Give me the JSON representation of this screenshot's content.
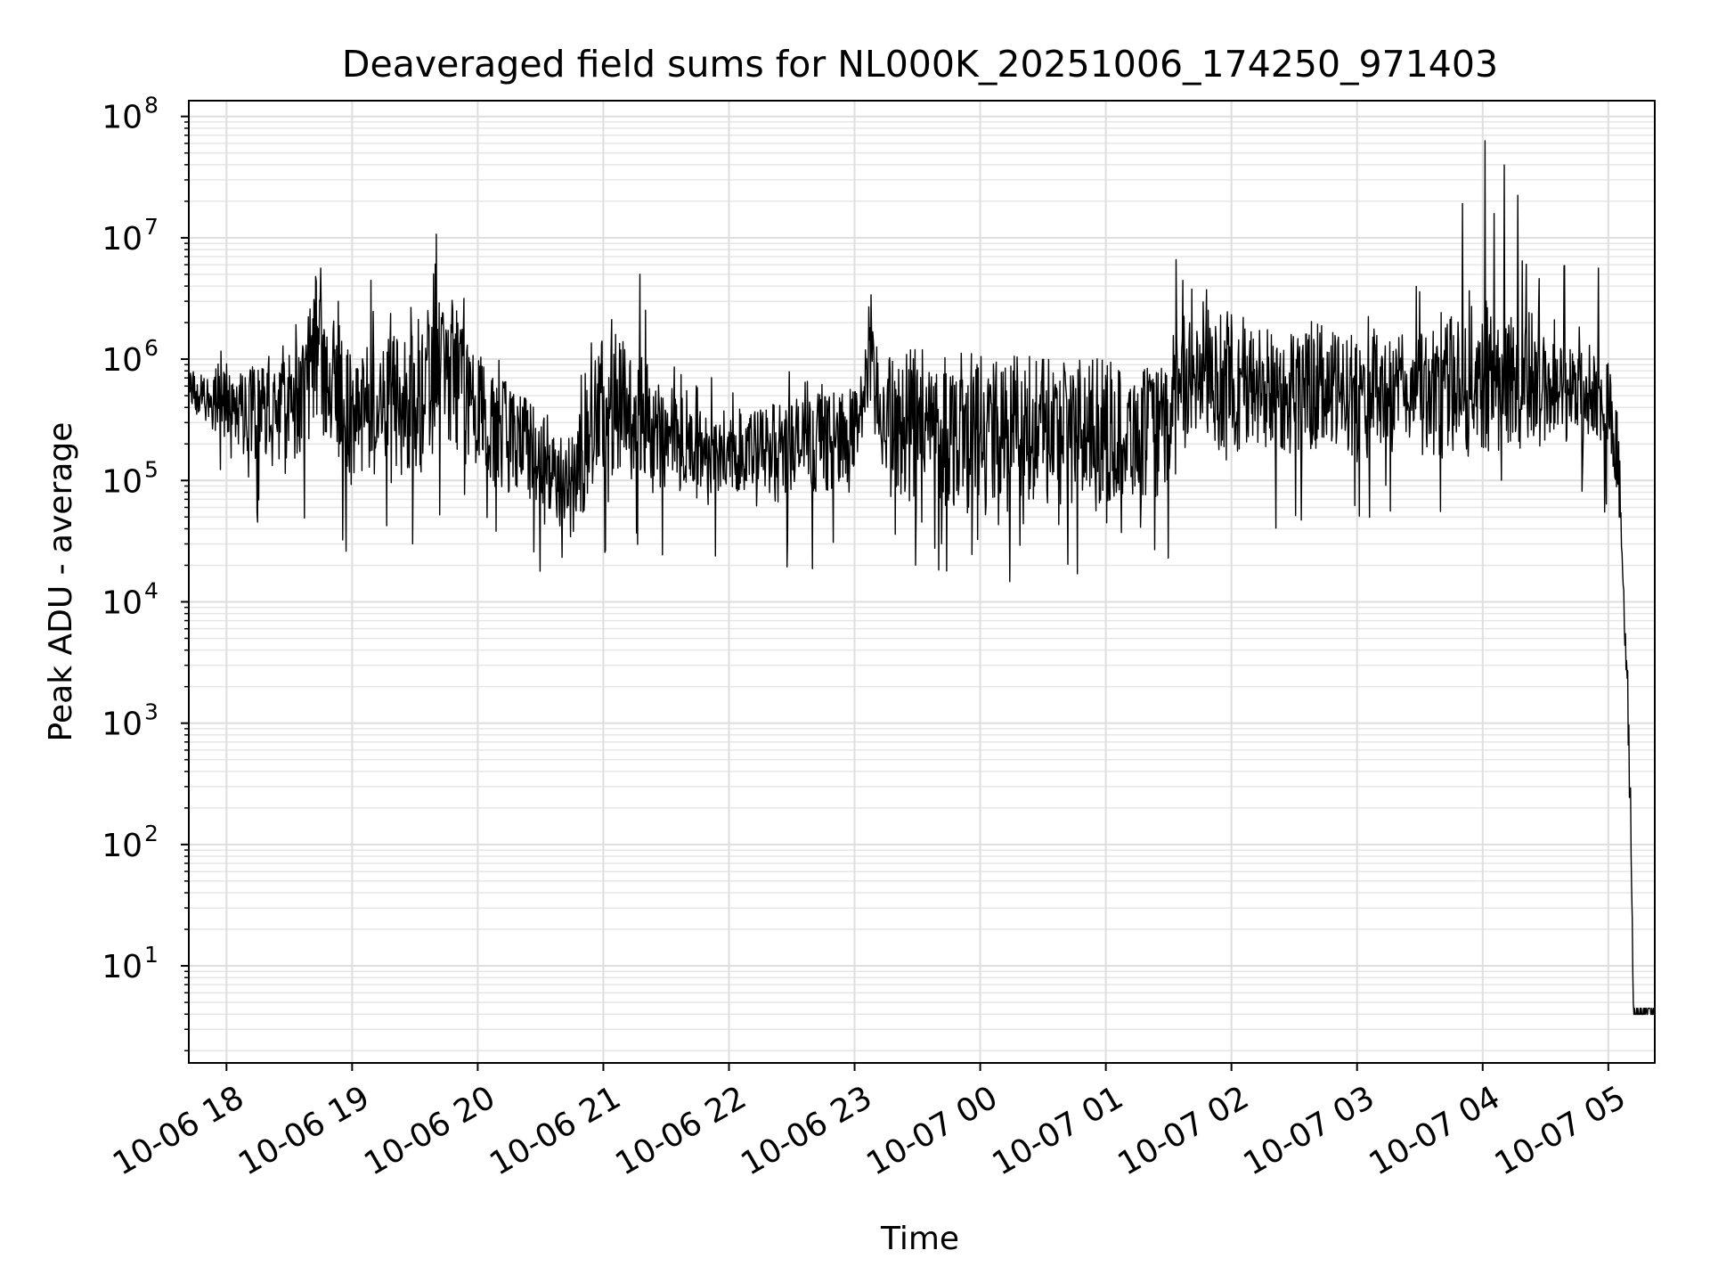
{
  "chart_data": {
    "type": "line",
    "title": "Deaveraged field sums for NL000K_20251006_174250_971403",
    "xlabel": "Time",
    "ylabel": "Peak ADU - average",
    "yscale": "log",
    "ylim_exp": [
      0.2,
      8.13
    ],
    "xlim_hours": [
      -0.3,
      11.37
    ],
    "grid": true,
    "line_color": "#000000",
    "x_ticks": [
      {
        "label": "10-06 18",
        "hour": 0
      },
      {
        "label": "10-06 19",
        "hour": 1
      },
      {
        "label": "10-06 20",
        "hour": 2
      },
      {
        "label": "10-06 21",
        "hour": 3
      },
      {
        "label": "10-06 22",
        "hour": 4
      },
      {
        "label": "10-06 23",
        "hour": 5
      },
      {
        "label": "10-07 00",
        "hour": 6
      },
      {
        "label": "10-07 01",
        "hour": 7
      },
      {
        "label": "10-07 02",
        "hour": 8
      },
      {
        "label": "10-07 03",
        "hour": 9
      },
      {
        "label": "10-07 04",
        "hour": 10
      },
      {
        "label": "10-07 05",
        "hour": 11
      }
    ],
    "y_ticks": [
      {
        "base": "10",
        "exp": "1",
        "value_exp": 1
      },
      {
        "base": "10",
        "exp": "2",
        "value_exp": 2
      },
      {
        "base": "10",
        "exp": "3",
        "value_exp": 3
      },
      {
        "base": "10",
        "exp": "4",
        "value_exp": 4
      },
      {
        "base": "10",
        "exp": "5",
        "value_exp": 5
      },
      {
        "base": "10",
        "exp": "6",
        "value_exp": 6
      },
      {
        "base": "10",
        "exp": "7",
        "value_exp": 7
      },
      {
        "base": "10",
        "exp": "8",
        "value_exp": 8
      }
    ],
    "envelope": [
      {
        "hour": -0.3,
        "lo": 5.6,
        "hi": 5.85,
        "spike": 5.9
      },
      {
        "hour": 0.0,
        "lo": 5.3,
        "hi": 5.9,
        "spike": 6.1
      },
      {
        "hour": 0.5,
        "lo": 5.0,
        "hi": 6.1,
        "spike": 6.4
      },
      {
        "hour": 0.75,
        "lo": 5.3,
        "hi": 6.7,
        "spike": 6.75
      },
      {
        "hour": 1.0,
        "lo": 4.9,
        "hi": 6.0,
        "spike": 6.4
      },
      {
        "hour": 1.5,
        "lo": 5.0,
        "hi": 6.3,
        "spike": 6.5
      },
      {
        "hour": 1.75,
        "lo": 5.3,
        "hi": 6.6,
        "spike": 7.0
      },
      {
        "hour": 2.0,
        "lo": 5.0,
        "hi": 6.0,
        "spike": 6.3
      },
      {
        "hour": 2.5,
        "lo": 4.8,
        "hi": 5.6,
        "spike": 5.8
      },
      {
        "hour": 2.75,
        "lo": 4.5,
        "hi": 5.4,
        "spike": 5.6
      },
      {
        "hour": 3.0,
        "lo": 5.0,
        "hi": 6.2,
        "spike": 6.55
      },
      {
        "hour": 3.3,
        "lo": 5.0,
        "hi": 6.1,
        "spike": 6.7
      },
      {
        "hour": 3.5,
        "lo": 4.9,
        "hi": 5.7,
        "spike": 6.0
      },
      {
        "hour": 4.0,
        "lo": 4.9,
        "hi": 5.5,
        "spike": 5.8
      },
      {
        "hour": 4.5,
        "lo": 4.8,
        "hi": 5.7,
        "spike": 5.9
      },
      {
        "hour": 4.99,
        "lo": 5.0,
        "hi": 5.7,
        "spike": 5.8
      },
      {
        "hour": 5.1,
        "lo": 5.4,
        "hi": 6.3,
        "spike": 6.5
      },
      {
        "hour": 5.3,
        "lo": 4.8,
        "hi": 6.0,
        "spike": 6.1
      },
      {
        "hour": 6.0,
        "lo": 4.75,
        "hi": 6.0,
        "spike": 6.05
      },
      {
        "hour": 7.0,
        "lo": 4.8,
        "hi": 5.95,
        "spike": 6.0
      },
      {
        "hour": 7.5,
        "lo": 4.85,
        "hi": 5.9,
        "spike": 5.95
      },
      {
        "hour": 7.55,
        "lo": 5.4,
        "hi": 6.3,
        "spike": 6.8
      },
      {
        "hour": 8.0,
        "lo": 5.2,
        "hi": 6.3,
        "spike": 6.4
      },
      {
        "hour": 9.0,
        "lo": 5.2,
        "hi": 6.2,
        "spike": 6.6
      },
      {
        "hour": 9.5,
        "lo": 5.2,
        "hi": 6.2,
        "spike": 6.6
      },
      {
        "hour": 10.0,
        "lo": 5.2,
        "hi": 6.5,
        "spike": 7.8
      },
      {
        "hour": 10.5,
        "lo": 5.3,
        "hi": 6.2,
        "spike": 6.75
      },
      {
        "hour": 11.0,
        "lo": 5.3,
        "hi": 6.0,
        "spike": 6.6
      },
      {
        "hour": 11.07,
        "lo": 4.9,
        "hi": 5.6,
        "spike": 5.6
      },
      {
        "hour": 11.1,
        "lo": 4.5,
        "hi": 5.0,
        "spike": 5.0
      },
      {
        "hour": 11.12,
        "lo": 4.0,
        "hi": 4.2,
        "spike": 4.2
      },
      {
        "hour": 11.15,
        "lo": 3.1,
        "hi": 3.6,
        "spike": 3.6
      },
      {
        "hour": 11.18,
        "lo": 1.9,
        "hi": 2.5,
        "spike": 2.5
      },
      {
        "hour": 11.2,
        "lo": 0.6,
        "hi": 0.65,
        "spike": 0.65
      },
      {
        "hour": 11.37,
        "lo": 0.6,
        "hi": 0.65,
        "spike": 0.65
      }
    ],
    "notable_peaks": [
      {
        "hour": 10.02,
        "value_exp": 7.8
      },
      {
        "hour": 10.17,
        "value_exp": 7.6
      },
      {
        "hour": 10.28,
        "value_exp": 7.35
      },
      {
        "hour": 1.67,
        "value_exp": 7.03
      },
      {
        "hour": 10.09,
        "value_exp": 7.2
      },
      {
        "hour": 7.56,
        "value_exp": 6.82
      },
      {
        "hour": 9.47,
        "value_exp": 6.6
      },
      {
        "hour": 0.75,
        "value_exp": 6.75
      },
      {
        "hour": 3.29,
        "value_exp": 6.7
      },
      {
        "hour": 5.13,
        "value_exp": 6.53
      },
      {
        "hour": 1.15,
        "value_exp": 6.65
      },
      {
        "hour": 10.65,
        "value_exp": 6.77
      },
      {
        "hour": 10.92,
        "value_exp": 6.75
      }
    ]
  }
}
